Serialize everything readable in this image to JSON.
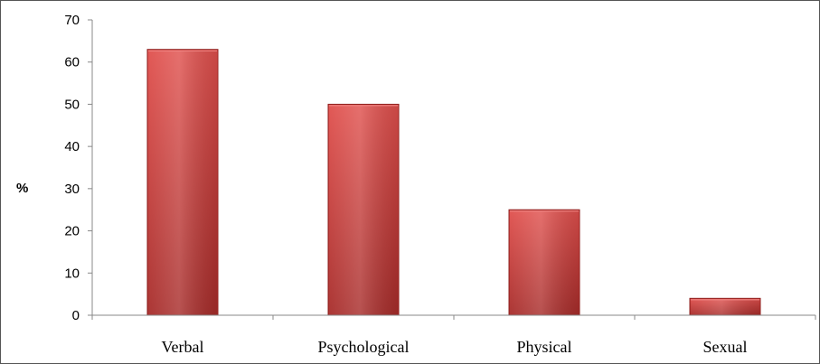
{
  "chart_data": {
    "type": "bar",
    "title": "",
    "xlabel": "",
    "ylabel": "%",
    "ylim": [
      0,
      70
    ],
    "yticks": [
      0,
      10,
      20,
      30,
      40,
      50,
      60,
      70
    ],
    "categories": [
      "Verbal",
      "Psychological",
      "Physical",
      "Sexual"
    ],
    "values": [
      63,
      50,
      25,
      4
    ],
    "grid": false,
    "legend": "none",
    "colors": {
      "bar_top": "#e0504d",
      "bar_bottom": "#a72c2a",
      "bar_edge": "#8c1f1d",
      "axis": "#888888"
    }
  }
}
